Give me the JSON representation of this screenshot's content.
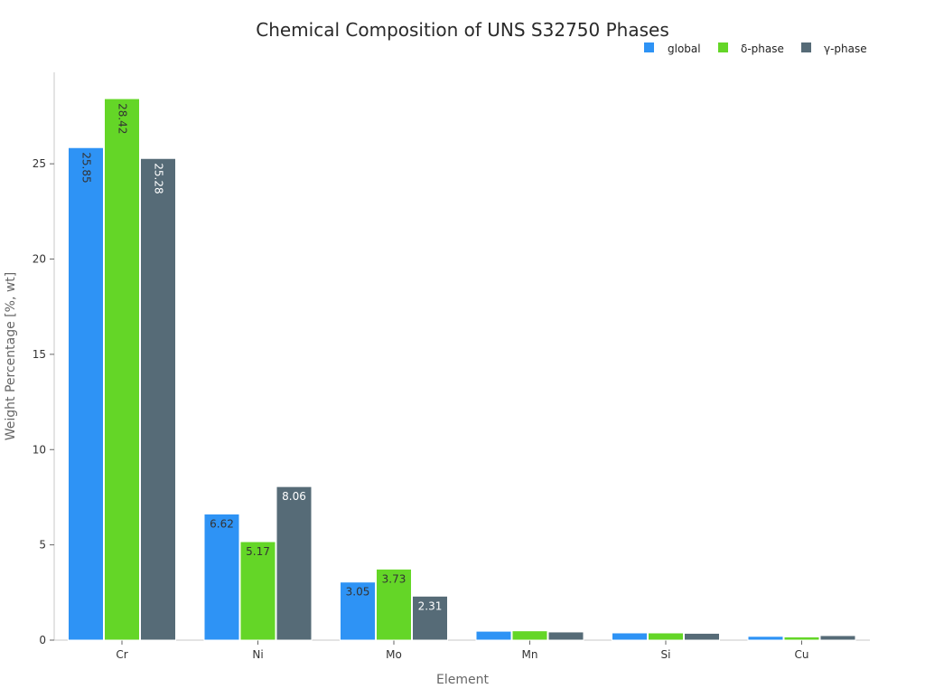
{
  "chart_data": {
    "type": "bar",
    "title": "Chemical Composition of UNS S32750 Phases",
    "xlabel": "Element",
    "ylabel": "Weight Percentage [%, wt]",
    "categories": [
      "Cr",
      "Ni",
      "Mo",
      "Mn",
      "Si",
      "Cu"
    ],
    "series": [
      {
        "name": "global",
        "color": "#2e93f5",
        "values": [
          25.85,
          6.62,
          3.05,
          0.47,
          0.38,
          0.2
        ],
        "labels": [
          "25.85",
          "6.62",
          "3.05",
          "",
          "",
          ""
        ]
      },
      {
        "name": "δ-phase",
        "color": "#64d627",
        "values": [
          28.42,
          5.17,
          3.73,
          0.49,
          0.38,
          0.17
        ],
        "labels": [
          "28.42",
          "5.17",
          "3.73",
          "",
          "",
          ""
        ]
      },
      {
        "name": "γ-phase",
        "color": "#566b77",
        "values": [
          25.28,
          8.06,
          2.31,
          0.43,
          0.36,
          0.24
        ],
        "labels": [
          "25.28",
          "8.06",
          "2.31",
          "",
          "",
          ""
        ]
      }
    ],
    "ylim": [
      0,
      29.8
    ],
    "yticks": [
      "0",
      "5",
      "10",
      "15",
      "20",
      "25"
    ],
    "legend_position": "top-right",
    "grid": false
  }
}
